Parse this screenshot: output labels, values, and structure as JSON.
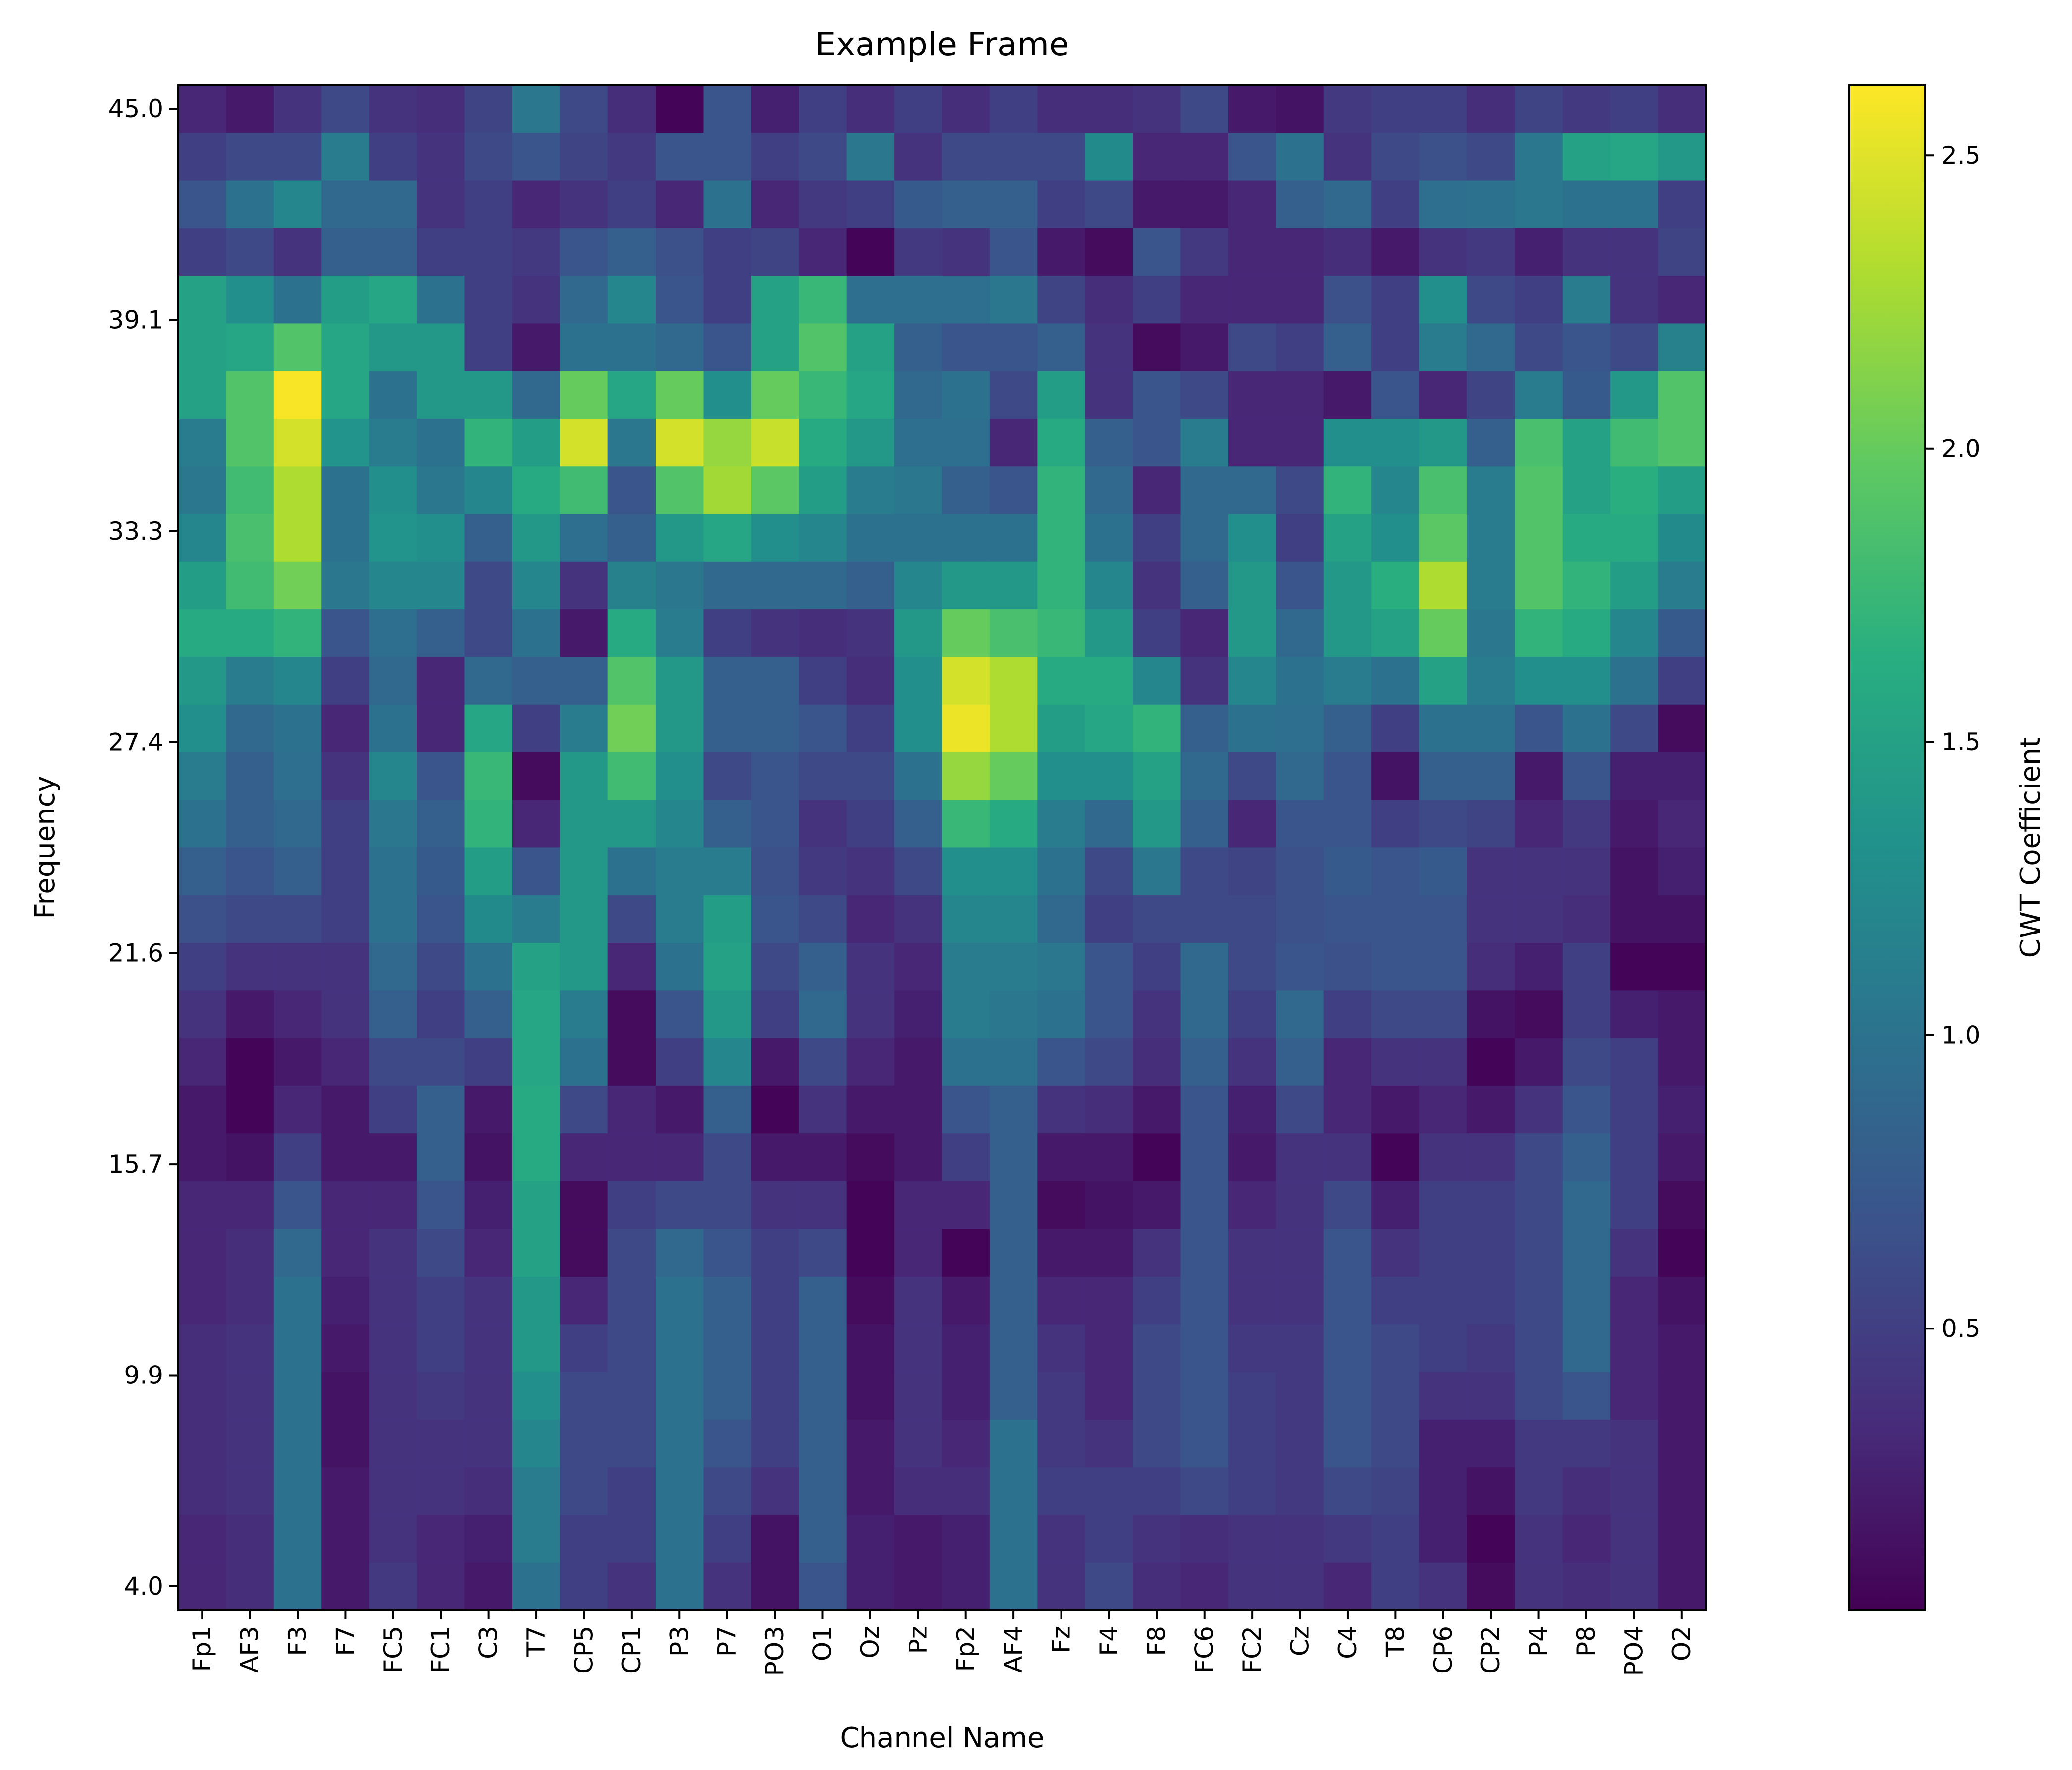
{
  "chart_data": {
    "type": "heatmap",
    "title": "Example Frame",
    "xlabel": "Channel Name",
    "ylabel": "Frequency",
    "colorbar_label": "CWT Coefficient",
    "colormap": "viridis",
    "vmin": 0.02,
    "vmax": 2.62,
    "x_categories": [
      "Fp1",
      "AF3",
      "F3",
      "F7",
      "FC5",
      "FC1",
      "C3",
      "T7",
      "CP5",
      "CP1",
      "P3",
      "P7",
      "PO3",
      "O1",
      "Oz",
      "Pz",
      "Fp2",
      "AF4",
      "Fz",
      "F4",
      "F8",
      "FC6",
      "FC2",
      "Cz",
      "C4",
      "T8",
      "CP6",
      "CP2",
      "P4",
      "P8",
      "PO4",
      "O2"
    ],
    "y_tick_labels": [
      "45.0",
      "39.1",
      "33.3",
      "27.4",
      "21.6",
      "15.7",
      "9.9",
      "4.0"
    ],
    "y_range": [
      4.0,
      45.0
    ],
    "colorbar_ticks": [
      0.5,
      1.0,
      1.5,
      2.0,
      2.5
    ],
    "rows_top_to_bottom": [
      [
        0.3,
        0.2,
        0.4,
        0.6,
        0.4,
        0.35,
        0.55,
        1.05,
        0.6,
        0.35,
        0.05,
        0.7,
        0.25,
        0.5,
        0.35,
        0.5,
        0.35,
        0.5,
        0.35,
        0.35,
        0.4,
        0.6,
        0.2,
        0.15,
        0.45,
        0.5,
        0.5,
        0.35,
        0.55,
        0.45,
        0.5,
        0.35
      ],
      [
        0.5,
        0.6,
        0.6,
        1.1,
        0.5,
        0.4,
        0.6,
        0.7,
        0.55,
        0.45,
        0.7,
        0.7,
        0.5,
        0.6,
        1.05,
        0.4,
        0.6,
        0.6,
        0.6,
        1.25,
        0.3,
        0.3,
        0.7,
        1.0,
        0.4,
        0.6,
        0.65,
        0.6,
        1.05,
        1.5,
        1.55,
        1.4
      ],
      [
        0.7,
        1.0,
        1.2,
        0.9,
        0.9,
        0.4,
        0.5,
        0.3,
        0.4,
        0.5,
        0.3,
        1.0,
        0.3,
        0.45,
        0.5,
        0.75,
        0.8,
        0.8,
        0.5,
        0.6,
        0.2,
        0.2,
        0.3,
        0.8,
        0.9,
        0.5,
        0.95,
        1.0,
        1.05,
        1.0,
        1.0,
        0.5
      ],
      [
        0.5,
        0.6,
        0.4,
        0.8,
        0.8,
        0.5,
        0.5,
        0.45,
        0.7,
        0.8,
        0.65,
        0.5,
        0.55,
        0.3,
        0.05,
        0.45,
        0.4,
        0.7,
        0.2,
        0.1,
        0.7,
        0.45,
        0.3,
        0.3,
        0.35,
        0.2,
        0.4,
        0.45,
        0.25,
        0.4,
        0.4,
        0.55
      ],
      [
        1.5,
        1.3,
        1.0,
        1.45,
        1.55,
        1.0,
        0.5,
        0.4,
        0.9,
        1.2,
        0.7,
        0.5,
        1.5,
        1.75,
        0.95,
        0.95,
        0.95,
        1.05,
        0.55,
        0.35,
        0.5,
        0.3,
        0.3,
        0.3,
        0.65,
        0.5,
        1.3,
        0.6,
        0.5,
        1.1,
        0.4,
        0.3
      ],
      [
        1.5,
        1.55,
        1.9,
        1.55,
        1.4,
        1.4,
        0.5,
        0.2,
        1.0,
        1.0,
        0.9,
        0.7,
        1.5,
        1.9,
        1.5,
        0.8,
        0.7,
        0.7,
        0.8,
        0.4,
        0.1,
        0.2,
        0.6,
        0.5,
        0.8,
        0.5,
        1.1,
        0.9,
        0.6,
        0.7,
        0.6,
        1.15
      ],
      [
        1.5,
        1.9,
        2.6,
        1.55,
        1.0,
        1.4,
        1.4,
        0.9,
        2.0,
        1.55,
        2.0,
        1.3,
        2.0,
        1.75,
        1.55,
        0.9,
        1.0,
        0.6,
        1.45,
        0.4,
        0.7,
        0.6,
        0.3,
        0.3,
        0.2,
        0.7,
        0.3,
        0.55,
        1.1,
        0.75,
        1.4,
        1.9
      ],
      [
        1.1,
        1.9,
        2.45,
        1.35,
        1.1,
        1.0,
        1.7,
        1.45,
        2.45,
        1.05,
        2.45,
        2.2,
        2.4,
        1.6,
        1.4,
        0.95,
        0.95,
        0.3,
        1.6,
        0.8,
        0.7,
        1.1,
        0.3,
        0.3,
        1.3,
        1.3,
        1.4,
        0.8,
        1.85,
        1.5,
        1.8,
        1.9
      ],
      [
        1.05,
        1.8,
        2.3,
        1.0,
        1.3,
        1.05,
        1.2,
        1.6,
        1.8,
        0.7,
        1.9,
        2.25,
        1.95,
        1.45,
        1.1,
        1.05,
        0.8,
        0.7,
        1.7,
        0.9,
        0.3,
        0.9,
        0.9,
        0.6,
        1.7,
        1.2,
        1.85,
        1.1,
        1.9,
        1.5,
        1.65,
        1.45
      ],
      [
        1.2,
        1.85,
        2.3,
        1.0,
        1.35,
        1.3,
        0.8,
        1.4,
        0.95,
        0.8,
        1.4,
        1.55,
        1.3,
        1.2,
        1.0,
        1.0,
        1.0,
        1.0,
        1.7,
        1.0,
        0.5,
        0.9,
        1.3,
        0.5,
        1.5,
        1.3,
        1.95,
        1.1,
        1.9,
        1.6,
        1.6,
        1.25
      ],
      [
        1.45,
        1.8,
        2.05,
        1.05,
        1.2,
        1.2,
        0.6,
        1.2,
        0.4,
        1.15,
        1.05,
        0.9,
        0.9,
        0.9,
        0.8,
        1.2,
        1.4,
        1.4,
        1.7,
        1.2,
        0.4,
        0.8,
        1.4,
        0.7,
        1.4,
        1.65,
        2.3,
        1.1,
        1.9,
        1.7,
        1.45,
        1.1
      ],
      [
        1.6,
        1.6,
        1.7,
        0.7,
        0.95,
        0.8,
        0.6,
        1.0,
        0.2,
        1.6,
        1.1,
        0.5,
        0.4,
        0.35,
        0.4,
        1.4,
        2.0,
        1.85,
        1.75,
        1.4,
        0.5,
        0.3,
        1.4,
        0.9,
        1.4,
        1.5,
        2.0,
        1.05,
        1.7,
        1.6,
        1.2,
        0.75
      ],
      [
        1.4,
        1.1,
        1.2,
        0.5,
        0.9,
        0.3,
        0.9,
        0.8,
        0.8,
        1.9,
        1.4,
        0.8,
        0.8,
        0.5,
        0.35,
        1.3,
        2.45,
        2.3,
        1.6,
        1.6,
        1.2,
        0.4,
        1.2,
        1.0,
        1.1,
        1.0,
        1.5,
        1.1,
        1.3,
        1.3,
        1.0,
        0.5
      ],
      [
        1.3,
        0.9,
        1.0,
        0.3,
        1.0,
        0.3,
        1.55,
        0.5,
        1.1,
        2.05,
        1.4,
        0.8,
        0.8,
        0.7,
        0.5,
        1.3,
        2.55,
        2.3,
        1.45,
        1.55,
        1.7,
        0.8,
        1.0,
        0.95,
        0.8,
        0.5,
        1.0,
        1.0,
        0.7,
        1.0,
        0.6,
        0.1
      ],
      [
        1.1,
        0.8,
        0.95,
        0.4,
        1.2,
        0.7,
        1.75,
        0.1,
        1.4,
        1.8,
        1.3,
        0.6,
        0.7,
        0.6,
        0.6,
        1.0,
        2.2,
        2.0,
        1.3,
        1.3,
        1.5,
        0.9,
        0.6,
        0.9,
        0.7,
        0.15,
        0.8,
        0.8,
        0.2,
        0.7,
        0.25,
        0.25
      ],
      [
        1.0,
        0.8,
        0.9,
        0.5,
        1.05,
        0.8,
        1.7,
        0.3,
        1.4,
        1.4,
        1.2,
        0.8,
        0.7,
        0.4,
        0.5,
        0.8,
        1.75,
        1.6,
        1.1,
        0.9,
        1.4,
        0.8,
        0.3,
        0.7,
        0.7,
        0.5,
        0.6,
        0.55,
        0.3,
        0.45,
        0.2,
        0.3
      ],
      [
        0.8,
        0.7,
        0.8,
        0.5,
        1.0,
        0.75,
        1.45,
        0.7,
        1.4,
        1.0,
        1.1,
        1.1,
        0.65,
        0.45,
        0.4,
        0.6,
        1.3,
        1.3,
        1.0,
        0.6,
        1.05,
        0.6,
        0.55,
        0.65,
        0.75,
        0.7,
        0.75,
        0.4,
        0.4,
        0.4,
        0.15,
        0.25
      ],
      [
        0.65,
        0.6,
        0.6,
        0.5,
        1.0,
        0.7,
        1.25,
        1.1,
        1.4,
        0.6,
        1.1,
        1.45,
        0.7,
        0.6,
        0.3,
        0.4,
        1.2,
        1.2,
        0.9,
        0.5,
        0.6,
        0.6,
        0.6,
        0.65,
        0.7,
        0.7,
        0.7,
        0.4,
        0.4,
        0.35,
        0.15,
        0.15
      ],
      [
        0.5,
        0.4,
        0.4,
        0.4,
        0.9,
        0.6,
        1.0,
        1.5,
        1.4,
        0.3,
        1.0,
        1.5,
        0.6,
        0.8,
        0.4,
        0.3,
        1.1,
        1.1,
        1.05,
        0.7,
        0.5,
        0.9,
        0.6,
        0.7,
        0.65,
        0.7,
        0.7,
        0.35,
        0.25,
        0.5,
        0.05,
        0.05
      ],
      [
        0.4,
        0.2,
        0.3,
        0.4,
        0.8,
        0.5,
        0.8,
        1.55,
        1.1,
        0.1,
        0.7,
        1.4,
        0.5,
        0.9,
        0.4,
        0.25,
        1.1,
        1.05,
        1.0,
        0.7,
        0.4,
        0.9,
        0.5,
        0.9,
        0.5,
        0.6,
        0.6,
        0.15,
        0.1,
        0.5,
        0.25,
        0.2
      ],
      [
        0.3,
        0.05,
        0.2,
        0.3,
        0.6,
        0.6,
        0.5,
        1.55,
        1.0,
        0.1,
        0.5,
        1.2,
        0.2,
        0.6,
        0.3,
        0.2,
        1.0,
        1.0,
        0.7,
        0.6,
        0.35,
        0.8,
        0.4,
        0.8,
        0.3,
        0.4,
        0.4,
        0.05,
        0.2,
        0.6,
        0.5,
        0.2
      ],
      [
        0.2,
        0.05,
        0.3,
        0.2,
        0.5,
        0.8,
        0.2,
        1.6,
        0.6,
        0.3,
        0.2,
        0.8,
        0.05,
        0.4,
        0.2,
        0.2,
        0.7,
        0.8,
        0.4,
        0.35,
        0.2,
        0.7,
        0.25,
        0.6,
        0.3,
        0.2,
        0.3,
        0.2,
        0.4,
        0.7,
        0.5,
        0.25
      ],
      [
        0.2,
        0.15,
        0.5,
        0.2,
        0.2,
        0.8,
        0.15,
        1.6,
        0.3,
        0.3,
        0.3,
        0.6,
        0.2,
        0.2,
        0.1,
        0.2,
        0.5,
        0.8,
        0.2,
        0.2,
        0.05,
        0.7,
        0.2,
        0.4,
        0.4,
        0.05,
        0.4,
        0.4,
        0.6,
        0.8,
        0.5,
        0.2
      ],
      [
        0.3,
        0.3,
        0.7,
        0.3,
        0.3,
        0.7,
        0.25,
        1.5,
        0.1,
        0.5,
        0.6,
        0.6,
        0.4,
        0.4,
        0.05,
        0.3,
        0.3,
        0.8,
        0.1,
        0.15,
        0.2,
        0.7,
        0.3,
        0.4,
        0.6,
        0.25,
        0.5,
        0.5,
        0.6,
        0.9,
        0.5,
        0.1
      ],
      [
        0.3,
        0.35,
        0.9,
        0.3,
        0.4,
        0.6,
        0.3,
        1.5,
        0.1,
        0.6,
        0.9,
        0.7,
        0.5,
        0.6,
        0.05,
        0.3,
        0.05,
        0.8,
        0.2,
        0.2,
        0.4,
        0.7,
        0.4,
        0.4,
        0.7,
        0.4,
        0.5,
        0.5,
        0.6,
        0.9,
        0.4,
        0.05
      ],
      [
        0.3,
        0.35,
        1.0,
        0.25,
        0.4,
        0.5,
        0.4,
        1.4,
        0.3,
        0.6,
        1.0,
        0.8,
        0.5,
        0.8,
        0.1,
        0.4,
        0.2,
        0.8,
        0.3,
        0.3,
        0.5,
        0.7,
        0.4,
        0.4,
        0.7,
        0.5,
        0.5,
        0.5,
        0.6,
        0.9,
        0.3,
        0.15
      ],
      [
        0.35,
        0.4,
        1.0,
        0.2,
        0.4,
        0.5,
        0.4,
        1.4,
        0.5,
        0.6,
        1.0,
        0.8,
        0.5,
        0.8,
        0.15,
        0.4,
        0.25,
        0.8,
        0.4,
        0.3,
        0.6,
        0.7,
        0.45,
        0.45,
        0.7,
        0.6,
        0.5,
        0.45,
        0.6,
        0.9,
        0.3,
        0.2
      ],
      [
        0.35,
        0.4,
        1.0,
        0.15,
        0.4,
        0.45,
        0.4,
        1.3,
        0.6,
        0.6,
        1.0,
        0.8,
        0.5,
        0.8,
        0.15,
        0.4,
        0.25,
        0.8,
        0.45,
        0.3,
        0.6,
        0.7,
        0.5,
        0.45,
        0.7,
        0.6,
        0.4,
        0.4,
        0.6,
        0.7,
        0.3,
        0.2
      ],
      [
        0.35,
        0.4,
        1.0,
        0.15,
        0.4,
        0.4,
        0.4,
        1.2,
        0.6,
        0.6,
        1.0,
        0.7,
        0.5,
        0.8,
        0.2,
        0.4,
        0.3,
        1.0,
        0.45,
        0.4,
        0.6,
        0.7,
        0.5,
        0.45,
        0.7,
        0.6,
        0.25,
        0.25,
        0.45,
        0.45,
        0.4,
        0.2
      ],
      [
        0.35,
        0.4,
        1.0,
        0.2,
        0.4,
        0.4,
        0.35,
        1.1,
        0.6,
        0.5,
        1.0,
        0.6,
        0.4,
        0.8,
        0.2,
        0.35,
        0.35,
        1.0,
        0.5,
        0.5,
        0.5,
        0.6,
        0.5,
        0.45,
        0.6,
        0.55,
        0.25,
        0.15,
        0.45,
        0.35,
        0.4,
        0.2
      ],
      [
        0.3,
        0.35,
        1.0,
        0.2,
        0.4,
        0.3,
        0.25,
        1.1,
        0.5,
        0.5,
        1.0,
        0.5,
        0.15,
        0.8,
        0.25,
        0.2,
        0.25,
        1.0,
        0.4,
        0.5,
        0.4,
        0.35,
        0.4,
        0.4,
        0.45,
        0.5,
        0.25,
        0.05,
        0.4,
        0.3,
        0.4,
        0.2
      ],
      [
        0.3,
        0.35,
        1.0,
        0.2,
        0.45,
        0.3,
        0.2,
        1.0,
        0.5,
        0.4,
        1.0,
        0.4,
        0.15,
        0.7,
        0.25,
        0.2,
        0.25,
        1.0,
        0.4,
        0.6,
        0.35,
        0.3,
        0.4,
        0.4,
        0.3,
        0.5,
        0.4,
        0.1,
        0.4,
        0.35,
        0.4,
        0.2
      ]
    ]
  }
}
